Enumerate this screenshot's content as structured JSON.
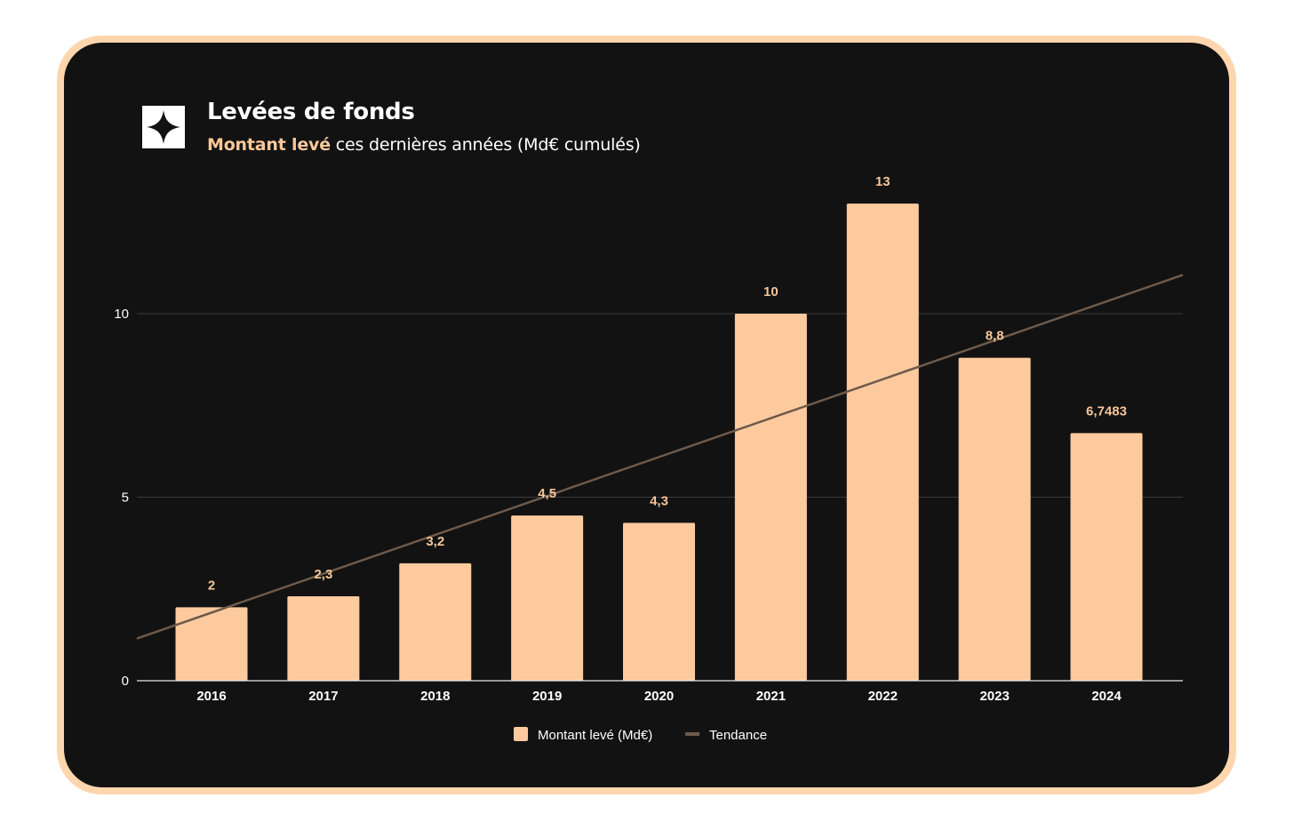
{
  "header": {
    "title": "Levées de fonds",
    "subtitle_highlight": "Montant levé",
    "subtitle_rest": " ces dernières années (Md€ cumulés)",
    "logo_icon": "sparkle-icon"
  },
  "colors": {
    "bar": "#fdca9e",
    "trend": "#6e5a4a",
    "background": "#121212",
    "frame": "#fdd6ad",
    "accent_text": "#fcc89b"
  },
  "chart_data": {
    "type": "bar",
    "categories": [
      "2016",
      "2017",
      "2018",
      "2019",
      "2020",
      "2021",
      "2022",
      "2023",
      "2024"
    ],
    "series": [
      {
        "name": "Montant levé (Md€)",
        "type": "bar",
        "values": [
          2,
          2.3,
          3.2,
          4.5,
          4.3,
          10,
          13,
          8.8,
          6.7483
        ],
        "labels": [
          "2",
          "2,3",
          "3,2",
          "4,5",
          "4,3",
          "10",
          "13",
          "8,8",
          "6,7483"
        ]
      },
      {
        "name": "Tendance",
        "type": "line",
        "trendline": "linear"
      }
    ],
    "yticks": [
      0,
      5,
      10
    ],
    "ylim": [
      0,
      13.5
    ],
    "grid": true,
    "legend": "bottom-center",
    "title": "",
    "xlabel": "",
    "ylabel": ""
  }
}
